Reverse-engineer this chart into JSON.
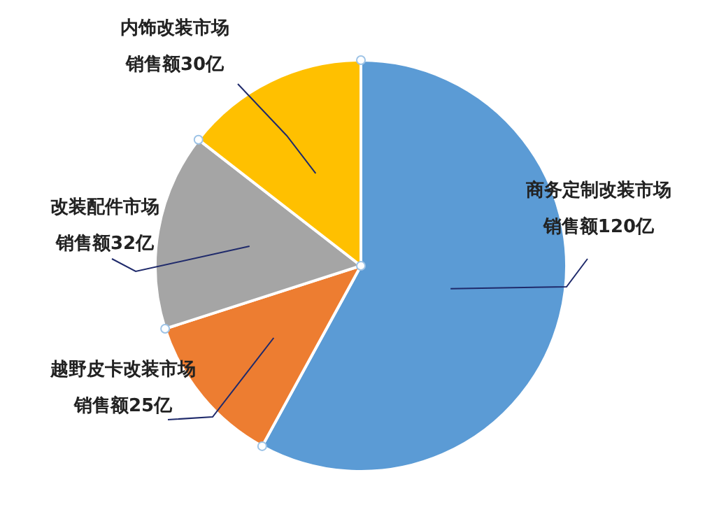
{
  "chart_data": {
    "type": "pie",
    "categories": [
      "商务定制改装市场",
      "越野皮卡改装市场",
      "改装配件市场",
      "内饰改装市场"
    ],
    "values": [
      120,
      25,
      32,
      30
    ],
    "colors": [
      "#5b9bd5",
      "#ed7d31",
      "#a5a5a5",
      "#ffc000"
    ],
    "value_labels": [
      "销售额120亿",
      "销售额25亿",
      "销售额32亿",
      "销售额30亿"
    ]
  }
}
